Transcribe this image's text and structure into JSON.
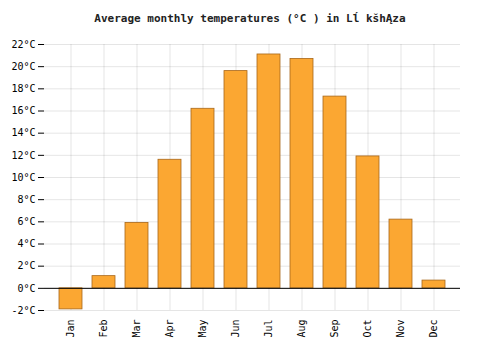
{
  "chart_data": {
    "type": "bar",
    "title": "Average monthly temperatures (°C ) in Lĺ kšhĄza",
    "categories": [
      "Jan",
      "Feb",
      "Mar",
      "Apr",
      "May",
      "Jun",
      "Jul",
      "Aug",
      "Sep",
      "Oct",
      "Nov",
      "Dec"
    ],
    "values": [
      -1.9,
      1.1,
      5.9,
      11.6,
      16.2,
      19.6,
      21.1,
      20.7,
      17.3,
      11.9,
      6.2,
      0.7
    ],
    "color": "#fba732",
    "ylim": [
      -2,
      22
    ],
    "yticks": [
      {
        "value": -2,
        "label": "-2°C"
      },
      {
        "value": 0,
        "label": "0°C"
      },
      {
        "value": 2,
        "label": "2°C"
      },
      {
        "value": 4,
        "label": "4°C"
      },
      {
        "value": 6,
        "label": "6°C"
      },
      {
        "value": 8,
        "label": "8°C"
      },
      {
        "value": 10,
        "label": "10°C"
      },
      {
        "value": 12,
        "label": "12°C"
      },
      {
        "value": 14,
        "label": "14°C"
      },
      {
        "value": 16,
        "label": "16°C"
      },
      {
        "value": 18,
        "label": "18°C"
      },
      {
        "value": 20,
        "label": "20°C"
      },
      {
        "value": 22,
        "label": "22°C"
      }
    ],
    "grid": true
  }
}
